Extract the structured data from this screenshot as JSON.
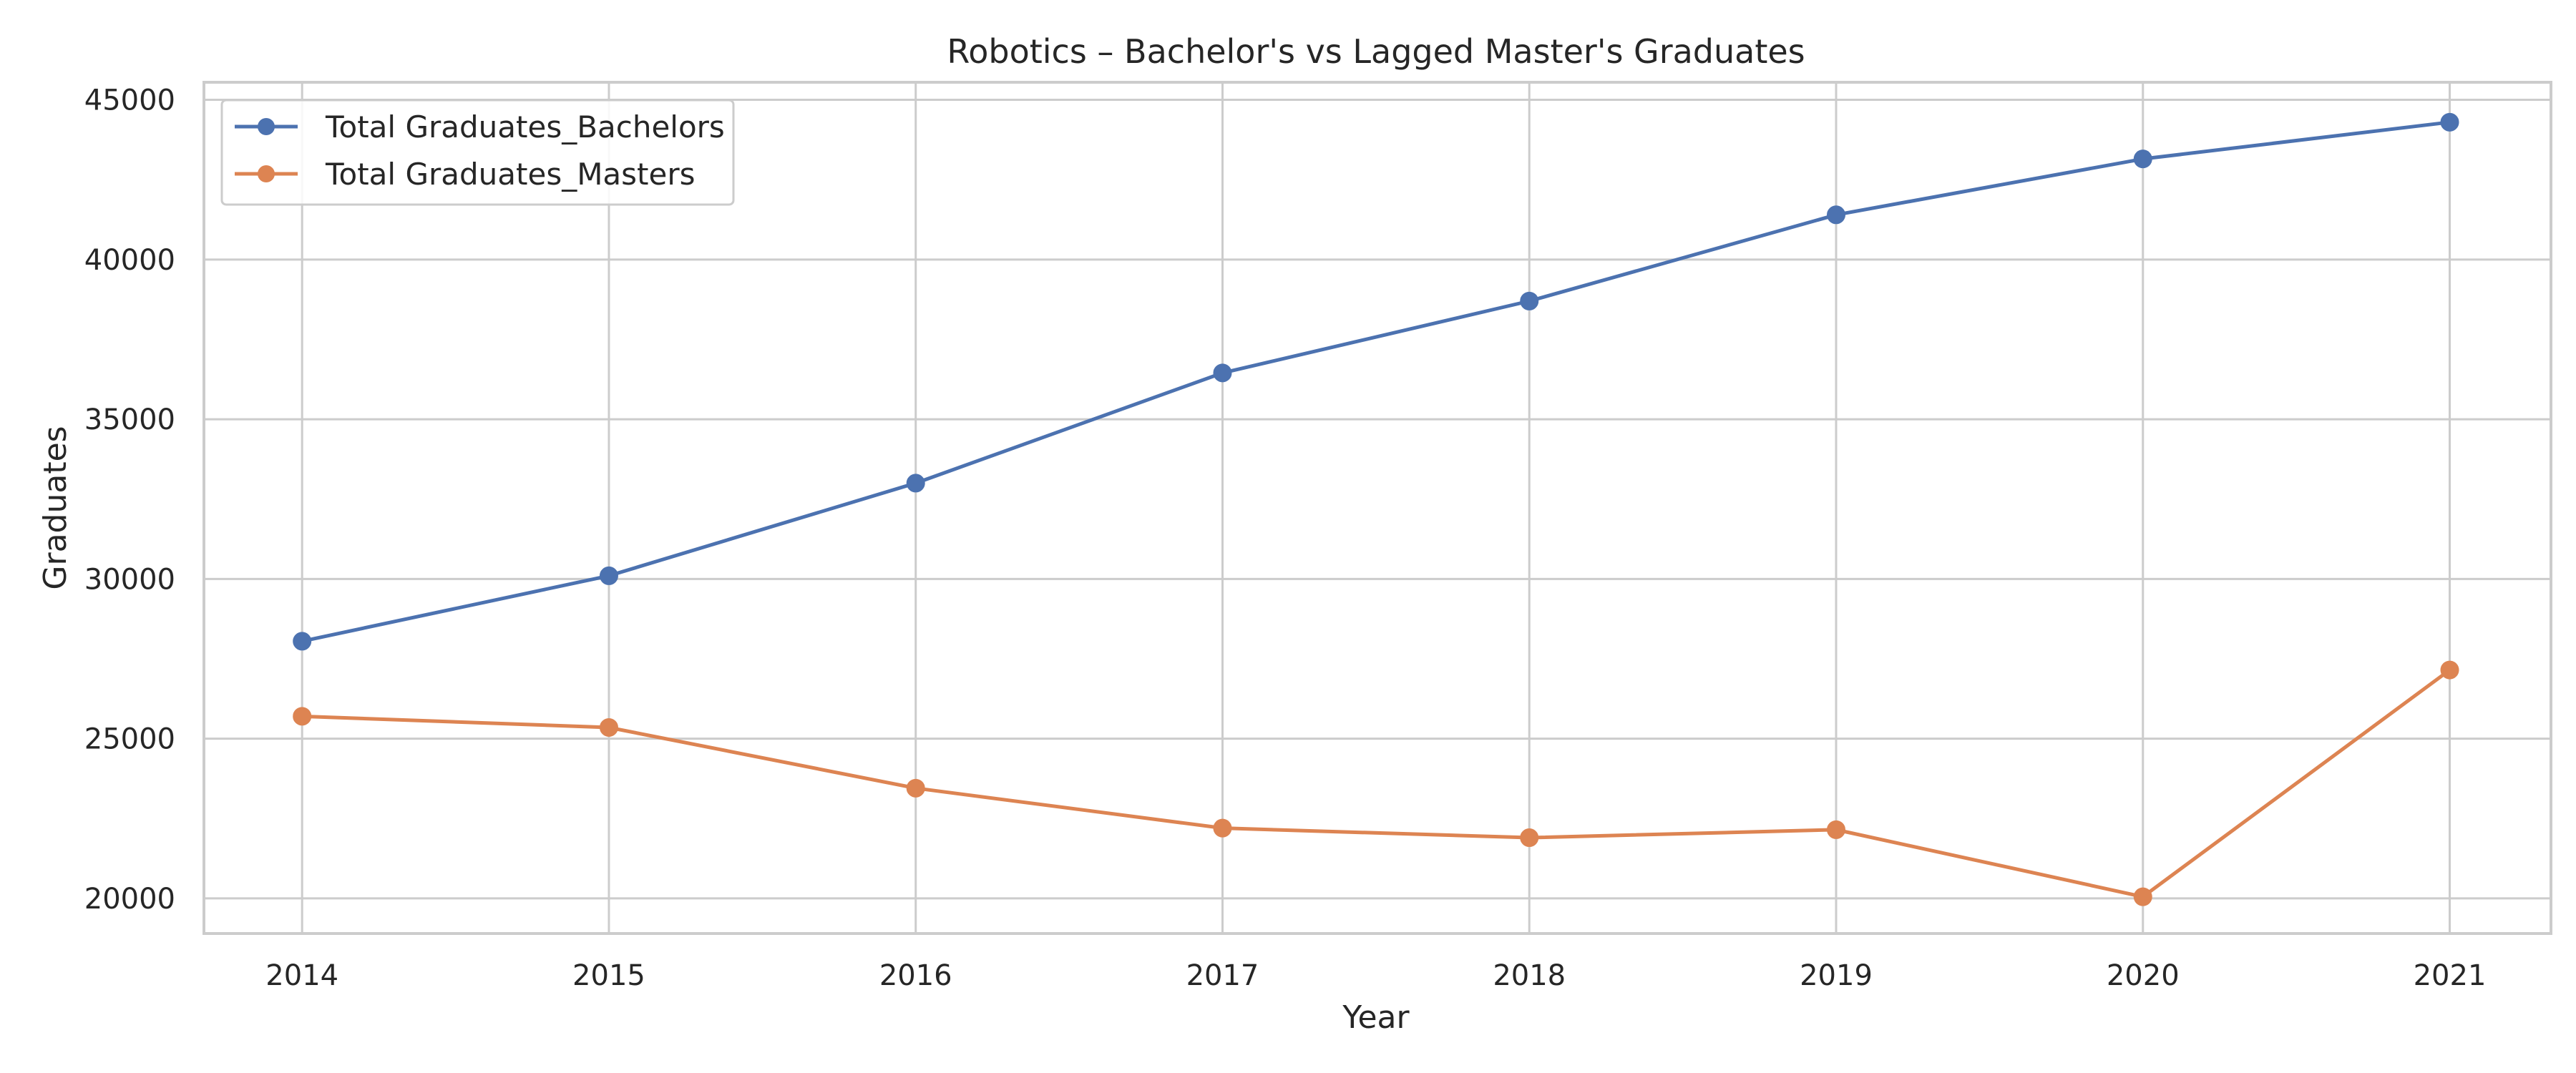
{
  "chart_data": {
    "type": "line",
    "title": "Robotics – Bachelor's vs Lagged Master's Graduates",
    "xlabel": "Year",
    "ylabel": "Graduates",
    "x": [
      2014,
      2015,
      2016,
      2017,
      2018,
      2019,
      2020,
      2021
    ],
    "x_tick_labels": [
      "2014",
      "2015",
      "2016",
      "2017",
      "2018",
      "2019",
      "2020",
      "2021"
    ],
    "y_ticks": [
      20000,
      25000,
      30000,
      35000,
      40000,
      45000
    ],
    "y_tick_labels": [
      "20000",
      "25000",
      "30000",
      "35000",
      "40000",
      "45000"
    ],
    "xlim": [
      2013.68,
      2021.33
    ],
    "ylim": [
      18900,
      45550
    ],
    "grid": true,
    "legend_position": "upper-left",
    "series": [
      {
        "name": "Total Graduates_Bachelors",
        "color": "#4c72b0",
        "values": [
          28050,
          30100,
          33000,
          36450,
          38700,
          41400,
          43150,
          44300
        ]
      },
      {
        "name": "Total Graduates_Masters",
        "color": "#dd8452",
        "values": [
          25700,
          25350,
          23450,
          22200,
          21900,
          22150,
          20050,
          27150
        ]
      }
    ]
  }
}
